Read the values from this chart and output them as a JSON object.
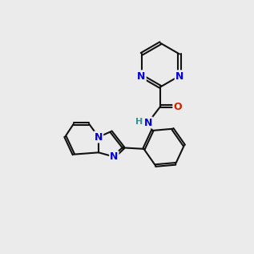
{
  "bg_color": "#ebebeb",
  "atom_color_N": "#0000cc",
  "atom_color_O": "#cc2200",
  "atom_color_H": "#3a9090",
  "bond_color": "#111111",
  "bond_width": 1.5,
  "font_size": 9,
  "dbo": 0.055
}
